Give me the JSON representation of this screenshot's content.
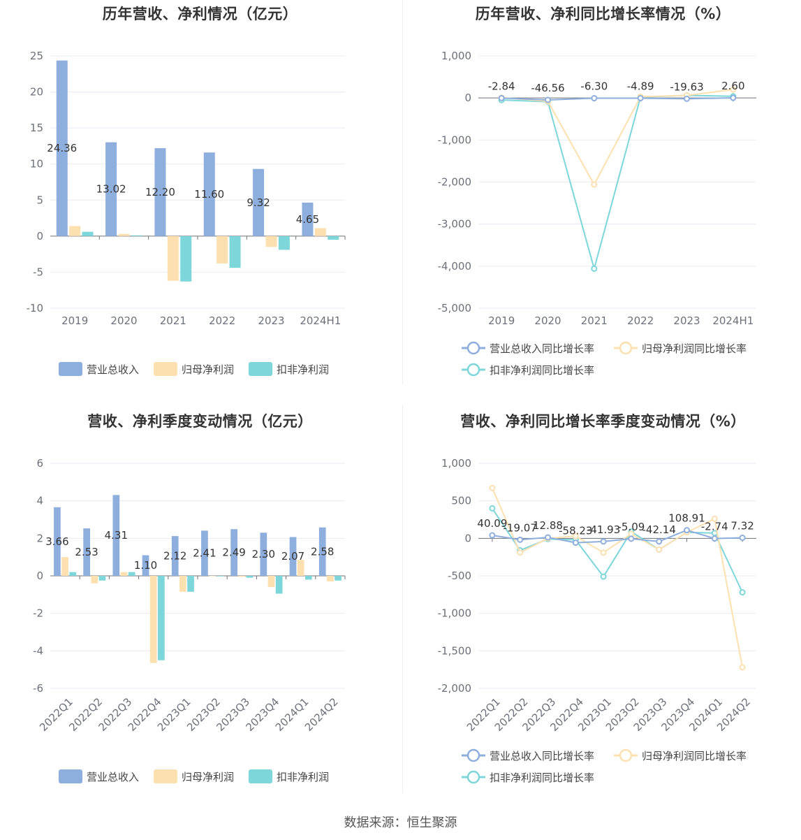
{
  "footer": "数据来源：恒生聚源",
  "colors": {
    "revenue": "#8eaedd",
    "net": "#fde0b0",
    "deducted": "#7dd6d9",
    "grid": "#e8ebf2",
    "axis": "#6e7079"
  },
  "chart_data": [
    {
      "id": "annual-values",
      "type": "bar",
      "title": "历年营收、净利情况（亿元）",
      "categories": [
        "2019",
        "2020",
        "2021",
        "2022",
        "2023",
        "2024H1"
      ],
      "series": [
        {
          "name": "营业总收入",
          "values": [
            24.36,
            13.02,
            12.2,
            11.6,
            9.32,
            4.65
          ],
          "labels": [
            "24.36",
            "13.02",
            "12.20",
            "11.60",
            "9.32",
            "4.65"
          ]
        },
        {
          "name": "归母净利润",
          "values": [
            1.4,
            0.3,
            -6.2,
            -3.8,
            -1.5,
            1.1
          ]
        },
        {
          "name": "扣非净利润",
          "values": [
            0.6,
            0.1,
            -6.3,
            -4.4,
            -1.9,
            -0.5
          ]
        }
      ],
      "ylim": [
        -10,
        25
      ],
      "yticks": [
        "25",
        "20",
        "15",
        "10",
        "5",
        "0",
        "-5",
        "-10"
      ],
      "ytick_values": [
        25,
        20,
        15,
        10,
        5,
        0,
        -5,
        -10
      ],
      "legend": "bottom"
    },
    {
      "id": "annual-growth",
      "type": "line",
      "title": "历年营收、净利同比增长率情况（%）",
      "categories": [
        "2019",
        "2020",
        "2021",
        "2022",
        "2023",
        "2024H1"
      ],
      "series": [
        {
          "name": "营业总收入同比增长率",
          "values": [
            -2.84,
            -46.56,
            -6.3,
            -4.89,
            -19.63,
            2.6
          ],
          "labels": [
            "-2.84",
            "-46.56",
            "-6.30",
            "-4.89",
            "-19.63",
            "2.60"
          ]
        },
        {
          "name": "归母净利润同比增长率",
          "values": [
            10,
            -80,
            -2060,
            30,
            60,
            200
          ]
        },
        {
          "name": "扣非净利润同比增长率",
          "values": [
            -50,
            -90,
            -4060,
            20,
            60,
            40
          ]
        }
      ],
      "ylim": [
        -5000,
        1000
      ],
      "yticks": [
        "1,000",
        "0",
        "-1,000",
        "-2,000",
        "-3,000",
        "-4,000",
        "-5,000"
      ],
      "ytick_values": [
        1000,
        0,
        -1000,
        -2000,
        -3000,
        -4000,
        -5000
      ],
      "legend": "bottom"
    },
    {
      "id": "quarterly-values",
      "type": "bar",
      "title": "营收、净利季度变动情况（亿元）",
      "categories": [
        "2022Q1",
        "2022Q2",
        "2022Q3",
        "2022Q4",
        "2023Q1",
        "2023Q2",
        "2023Q3",
        "2023Q4",
        "2024Q1",
        "2024Q2"
      ],
      "series": [
        {
          "name": "营业总收入",
          "values": [
            3.66,
            2.53,
            4.31,
            1.1,
            2.12,
            2.41,
            2.49,
            2.3,
            2.07,
            2.58
          ],
          "labels": [
            "3.66",
            "2.53",
            "4.31",
            "1.10",
            "2.12",
            "2.41",
            "2.49",
            "2.30",
            "2.07",
            "2.58"
          ]
        },
        {
          "name": "归母净利润",
          "values": [
            1.0,
            -0.4,
            0.2,
            -4.65,
            -0.85,
            0.0,
            -0.05,
            -0.6,
            0.85,
            -0.3
          ]
        },
        {
          "name": "扣非净利润",
          "values": [
            0.2,
            -0.25,
            0.2,
            -4.5,
            -0.85,
            -0.03,
            -0.1,
            -0.95,
            -0.2,
            -0.25
          ]
        }
      ],
      "ylim": [
        -6,
        6
      ],
      "yticks": [
        "6",
        "4",
        "2",
        "0",
        "-2",
        "-4",
        "-6"
      ],
      "ytick_values": [
        6,
        4,
        2,
        0,
        -2,
        -4,
        -6
      ],
      "legend": "bottom"
    },
    {
      "id": "quarterly-growth",
      "type": "line",
      "title": "营收、净利同比增长率季度变动情况（%）",
      "categories": [
        "2022Q1",
        "2022Q2",
        "2022Q3",
        "2022Q4",
        "2023Q1",
        "2023Q2",
        "2023Q3",
        "2023Q4",
        "2024Q1",
        "2024Q2"
      ],
      "series": [
        {
          "name": "营业总收入同比增长率",
          "values": [
            40.09,
            -19.07,
            12.88,
            -58.23,
            -41.93,
            -5.09,
            -42.14,
            108.91,
            -2.74,
            7.32
          ],
          "labels": [
            "40.09",
            "-19.07",
            "12.88",
            "-58.23",
            "-41.93",
            "-5.09",
            "-42.14",
            "108.91",
            "-2.74",
            "7.32"
          ]
        },
        {
          "name": "归母净利润同比增长率",
          "values": [
            670,
            -190,
            0,
            30,
            -190,
            60,
            -150,
            80,
            260,
            -1720
          ]
        },
        {
          "name": "扣非净利润同比增长率",
          "values": [
            400,
            -160,
            -10,
            -20,
            -510,
            90,
            -150,
            80,
            70,
            -720
          ]
        }
      ],
      "ylim": [
        -2000,
        1000
      ],
      "yticks": [
        "1,000",
        "500",
        "0",
        "-500",
        "-1,000",
        "-1,500",
        "-2,000"
      ],
      "ytick_values": [
        1000,
        500,
        0,
        -500,
        -1000,
        -1500,
        -2000
      ],
      "legend": "bottom"
    }
  ]
}
